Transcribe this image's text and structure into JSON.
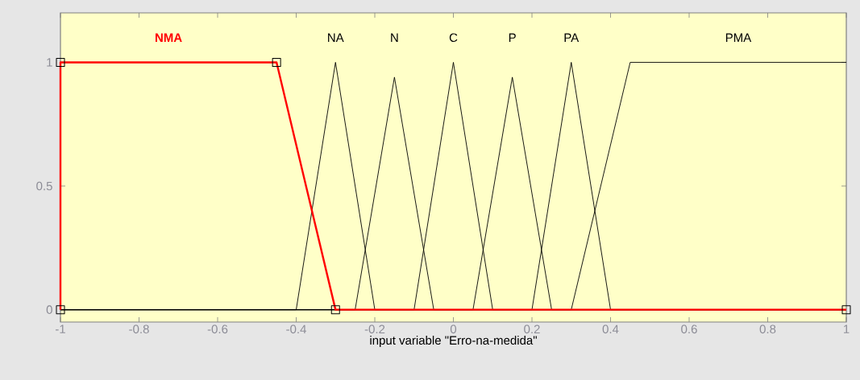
{
  "chart_data": {
    "type": "line",
    "xlabel": "input variable \"Erro-na-medida\"",
    "xlim": [
      -1,
      1
    ],
    "ylim": [
      -0.05,
      1.2
    ],
    "xticks": [
      -1,
      -0.8,
      -0.6,
      -0.4,
      -0.2,
      0,
      0.2,
      0.4,
      0.6,
      0.8,
      1
    ],
    "yticks": [
      0,
      0.5,
      1
    ],
    "grid": false,
    "legend": false,
    "series": [
      {
        "name": "NA",
        "color": "#000000",
        "x": [
          -1,
          -0.4,
          -0.3,
          -0.2,
          1
        ],
        "values": [
          0,
          0,
          1,
          0,
          0
        ]
      },
      {
        "name": "N",
        "color": "#000000",
        "x": [
          -1,
          -0.25,
          -0.15,
          -0.05,
          1
        ],
        "values": [
          0,
          0,
          0.94,
          0,
          0
        ]
      },
      {
        "name": "C",
        "color": "#000000",
        "x": [
          -1,
          -0.1,
          0,
          0.1,
          1
        ],
        "values": [
          0,
          0,
          1,
          0,
          0
        ]
      },
      {
        "name": "P",
        "color": "#000000",
        "x": [
          -1,
          0.05,
          0.15,
          0.25,
          1
        ],
        "values": [
          0,
          0,
          0.94,
          0,
          0
        ]
      },
      {
        "name": "PA",
        "color": "#000000",
        "x": [
          -1,
          0.2,
          0.3,
          0.4,
          1
        ],
        "values": [
          0,
          0,
          1,
          0,
          0
        ]
      },
      {
        "name": "PMA",
        "color": "#000000",
        "x": [
          -1,
          0.3,
          0.45,
          1
        ],
        "values": [
          0,
          0,
          1,
          1
        ]
      },
      {
        "name": "NMA",
        "color": "#ff0000",
        "marker": "square",
        "x": [
          -1,
          -1,
          -0.45,
          -0.3,
          1
        ],
        "values": [
          0,
          1,
          1,
          0,
          0
        ]
      }
    ]
  }
}
